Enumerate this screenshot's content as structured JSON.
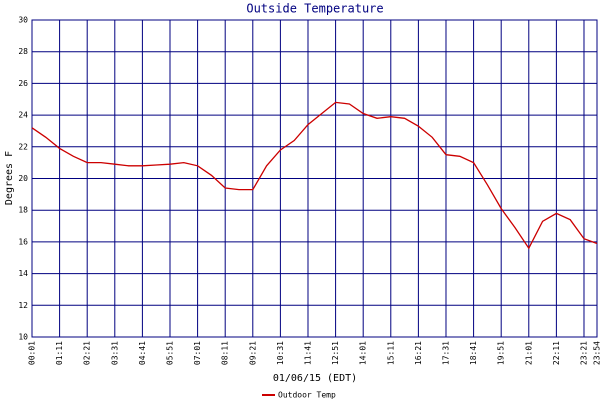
{
  "chart_data": {
    "type": "line",
    "title": "Outside Temperature",
    "xlabel": "01/06/15 (EDT)",
    "ylabel": "Degrees F",
    "x": [
      1,
      36,
      71,
      106,
      141,
      176,
      211,
      246,
      281,
      316,
      351,
      386,
      421,
      456,
      491,
      526,
      561,
      596,
      631,
      666,
      701,
      736,
      771,
      806,
      841,
      876,
      911,
      946,
      981,
      1016,
      1051,
      1086,
      1121,
      1156,
      1191,
      1226,
      1261,
      1296,
      1331,
      1366,
      1401,
      1434
    ],
    "series": [
      {
        "name": "Outdoor Temp",
        "color": "#cc0000",
        "values": [
          23.2,
          22.6,
          21.9,
          21.4,
          21.0,
          21.0,
          20.9,
          20.8,
          20.8,
          20.85,
          20.9,
          21.0,
          20.8,
          20.2,
          19.4,
          19.3,
          19.3,
          20.8,
          21.8,
          22.4,
          23.4,
          24.1,
          24.8,
          24.7,
          24.1,
          23.8,
          23.9,
          23.8,
          23.3,
          22.6,
          21.5,
          21.4,
          21.0,
          19.6,
          18.1,
          16.9,
          15.6,
          17.3,
          17.8,
          17.4,
          16.2,
          15.9
        ]
      }
    ],
    "xlim": [
      1,
      1434
    ],
    "xticks": [
      {
        "value": 1,
        "label": "00:01"
      },
      {
        "value": 71,
        "label": "01:11"
      },
      {
        "value": 141,
        "label": "02:21"
      },
      {
        "value": 211,
        "label": "03:31"
      },
      {
        "value": 281,
        "label": "04:41"
      },
      {
        "value": 351,
        "label": "05:51"
      },
      {
        "value": 421,
        "label": "07:01"
      },
      {
        "value": 491,
        "label": "08:11"
      },
      {
        "value": 561,
        "label": "09:21"
      },
      {
        "value": 631,
        "label": "10:31"
      },
      {
        "value": 701,
        "label": "11:41"
      },
      {
        "value": 771,
        "label": "12:51"
      },
      {
        "value": 841,
        "label": "14:01"
      },
      {
        "value": 911,
        "label": "15:11"
      },
      {
        "value": 981,
        "label": "16:21"
      },
      {
        "value": 1051,
        "label": "17:31"
      },
      {
        "value": 1121,
        "label": "18:41"
      },
      {
        "value": 1191,
        "label": "19:51"
      },
      {
        "value": 1261,
        "label": "21:01"
      },
      {
        "value": 1331,
        "label": "22:11"
      },
      {
        "value": 1401,
        "label": "23:21"
      },
      {
        "value": 1434,
        "label": "23:54"
      }
    ],
    "ylim": [
      10,
      30
    ],
    "yticks": [
      10,
      12,
      14,
      16,
      18,
      20,
      22,
      24,
      26,
      28,
      30
    ],
    "grid": true
  }
}
